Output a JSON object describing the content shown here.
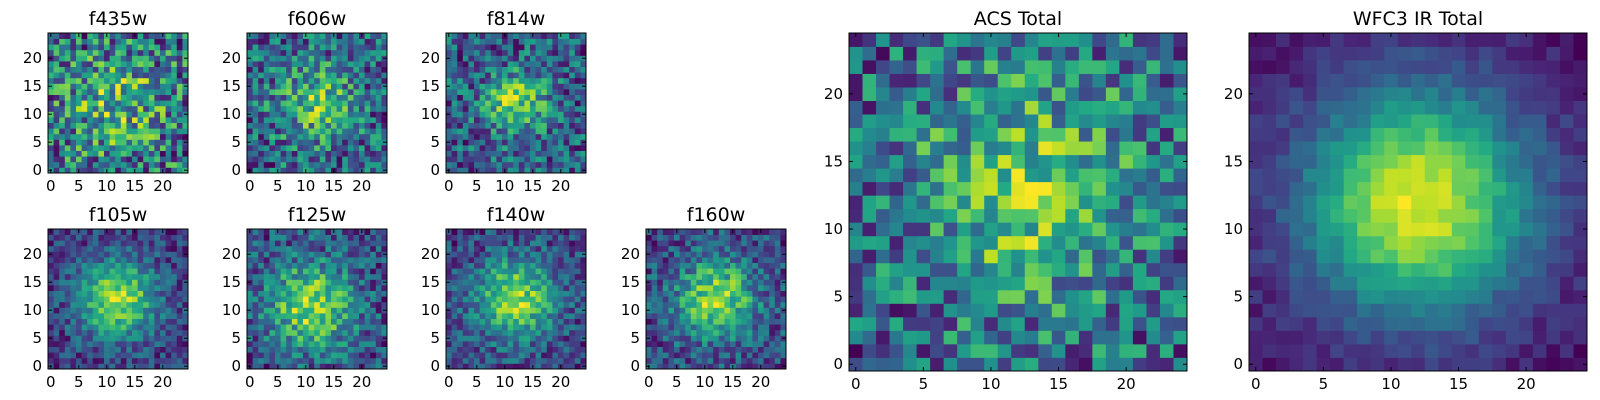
{
  "chart_data": [
    {
      "type": "heatmap",
      "id": "f435w",
      "title": "f435w",
      "grid": [
        25,
        25
      ],
      "xticks": [
        0,
        5,
        10,
        15,
        20
      ],
      "yticks": [
        0,
        5,
        10,
        15,
        20
      ],
      "xlim": [
        -0.5,
        24.5
      ],
      "ylim": [
        -0.5,
        24.5
      ],
      "colormap": "viridis",
      "peak": {
        "x": 12,
        "y": 12,
        "strength": 0.25,
        "sigma": 6
      },
      "noise": 0.32
    },
    {
      "type": "heatmap",
      "id": "f606w",
      "title": "f606w",
      "grid": [
        25,
        25
      ],
      "xticks": [
        0,
        5,
        10,
        15,
        20
      ],
      "yticks": [
        0,
        5,
        10,
        15,
        20
      ],
      "xlim": [
        -0.5,
        24.5
      ],
      "ylim": [
        -0.5,
        24.5
      ],
      "colormap": "viridis",
      "peak": {
        "x": 12,
        "y": 12,
        "strength": 0.35,
        "sigma": 5
      },
      "noise": 0.3
    },
    {
      "type": "heatmap",
      "id": "f814w",
      "title": "f814w",
      "grid": [
        25,
        25
      ],
      "xticks": [
        0,
        5,
        10,
        15,
        20
      ],
      "yticks": [
        0,
        5,
        10,
        15,
        20
      ],
      "xlim": [
        -0.5,
        24.5
      ],
      "ylim": [
        -0.5,
        24.5
      ],
      "colormap": "viridis",
      "peak": {
        "x": 12,
        "y": 12,
        "strength": 0.45,
        "sigma": 4
      },
      "noise": 0.28
    },
    {
      "type": "heatmap",
      "id": "f105w",
      "title": "f105w",
      "grid": [
        25,
        25
      ],
      "xticks": [
        0,
        5,
        10,
        15,
        20
      ],
      "yticks": [
        0,
        5,
        10,
        15,
        20
      ],
      "xlim": [
        -0.5,
        24.5
      ],
      "ylim": [
        -0.5,
        24.5
      ],
      "colormap": "viridis",
      "peak": {
        "x": 12,
        "y": 12,
        "strength": 0.65,
        "sigma": 5
      },
      "noise": 0.18
    },
    {
      "type": "heatmap",
      "id": "f125w",
      "title": "f125w",
      "grid": [
        25,
        25
      ],
      "xticks": [
        0,
        5,
        10,
        15,
        20
      ],
      "yticks": [
        0,
        5,
        10,
        15,
        20
      ],
      "xlim": [
        -0.5,
        24.5
      ],
      "ylim": [
        -0.5,
        24.5
      ],
      "colormap": "viridis",
      "peak": {
        "x": 11,
        "y": 11,
        "strength": 0.55,
        "sigma": 5.5
      },
      "noise": 0.22
    },
    {
      "type": "heatmap",
      "id": "f140w",
      "title": "f140w",
      "grid": [
        25,
        25
      ],
      "xticks": [
        0,
        5,
        10,
        15,
        20
      ],
      "yticks": [
        0,
        5,
        10,
        15,
        20
      ],
      "xlim": [
        -0.5,
        24.5
      ],
      "ylim": [
        -0.5,
        24.5
      ],
      "colormap": "viridis",
      "peak": {
        "x": 12,
        "y": 12,
        "strength": 0.6,
        "sigma": 5
      },
      "noise": 0.2
    },
    {
      "type": "heatmap",
      "id": "f160w",
      "title": "f160w",
      "grid": [
        25,
        25
      ],
      "xticks": [
        0,
        5,
        10,
        15,
        20
      ],
      "yticks": [
        0,
        5,
        10,
        15,
        20
      ],
      "xlim": [
        -0.5,
        24.5
      ],
      "ylim": [
        -0.5,
        24.5
      ],
      "colormap": "viridis",
      "peak": {
        "x": 12,
        "y": 12,
        "strength": 0.55,
        "sigma": 5
      },
      "noise": 0.2
    },
    {
      "type": "heatmap",
      "id": "acs_total",
      "title": "ACS Total",
      "grid": [
        25,
        25
      ],
      "xticks": [
        0,
        5,
        10,
        15,
        20
      ],
      "yticks": [
        0,
        5,
        10,
        15,
        20
      ],
      "xlim": [
        -0.5,
        24.5
      ],
      "ylim": [
        -0.5,
        24.5
      ],
      "colormap": "viridis",
      "peak": {
        "x": 13,
        "y": 13,
        "strength": 0.35,
        "sigma": 6
      },
      "noise": 0.25
    },
    {
      "type": "heatmap",
      "id": "wfc3_ir_total",
      "title": "WFC3 IR Total",
      "grid": [
        25,
        25
      ],
      "xticks": [
        0,
        5,
        10,
        15,
        20
      ],
      "yticks": [
        0,
        5,
        10,
        15,
        20
      ],
      "xlim": [
        -0.5,
        24.5
      ],
      "ylim": [
        -0.5,
        24.5
      ],
      "colormap": "viridis",
      "peak": {
        "x": 12,
        "y": 12,
        "strength": 0.9,
        "sigma": 6
      },
      "noise": 0.07
    }
  ]
}
